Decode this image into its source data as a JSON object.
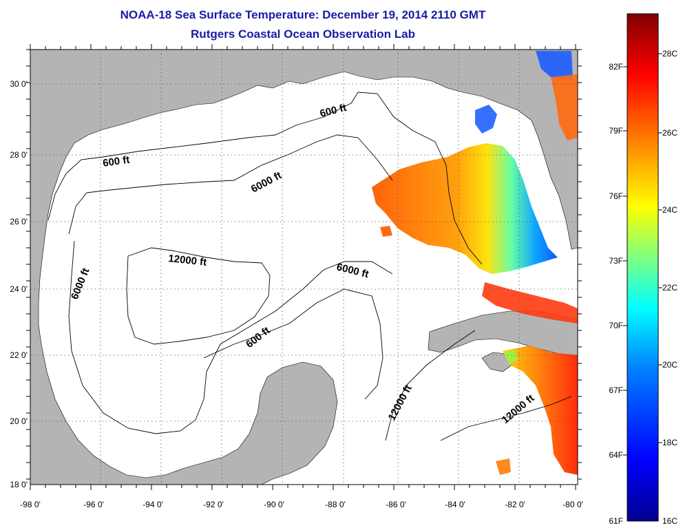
{
  "title": {
    "line1": "NOAA-18 Sea Surface Temperature:  December 19, 2014 2110 GMT",
    "line2": "Rutgers Coastal Ocean Observation Lab"
  },
  "map": {
    "lon_labels": [
      "-98 0'",
      "-96 0'",
      "-94 0'",
      "-92 0'",
      "-90 0'",
      "-88 0'",
      "-86 0'",
      "-84 0'",
      "-82 0'",
      "-80 0'"
    ],
    "lat_labels": [
      "30 0'",
      "28 0'",
      "26 0'",
      "24 0'",
      "22 0'",
      "20 0'",
      "18 0'"
    ],
    "contour_labels": [
      "600 ft",
      "600 ft",
      "6000 ft",
      "12000 ft",
      "6000 ft",
      "6000 ft",
      "600 ft",
      "12000 ft",
      "12000 ft"
    ],
    "colors": {
      "land": "#b4b4b4",
      "water": "#ffffff",
      "grid": "#555555"
    }
  },
  "colorbar": {
    "fahrenheit": [
      "82F",
      "79F",
      "76F",
      "73F",
      "70F",
      "67F",
      "64F",
      "61F"
    ],
    "celsius": [
      "28C",
      "26C",
      "24C",
      "22C",
      "20C",
      "18C",
      "16C"
    ],
    "gradient": [
      "#00008f",
      "#0000ff",
      "#0080ff",
      "#00ffff",
      "#80ff80",
      "#ffff00",
      "#ff8000",
      "#ff0000",
      "#800000"
    ]
  }
}
